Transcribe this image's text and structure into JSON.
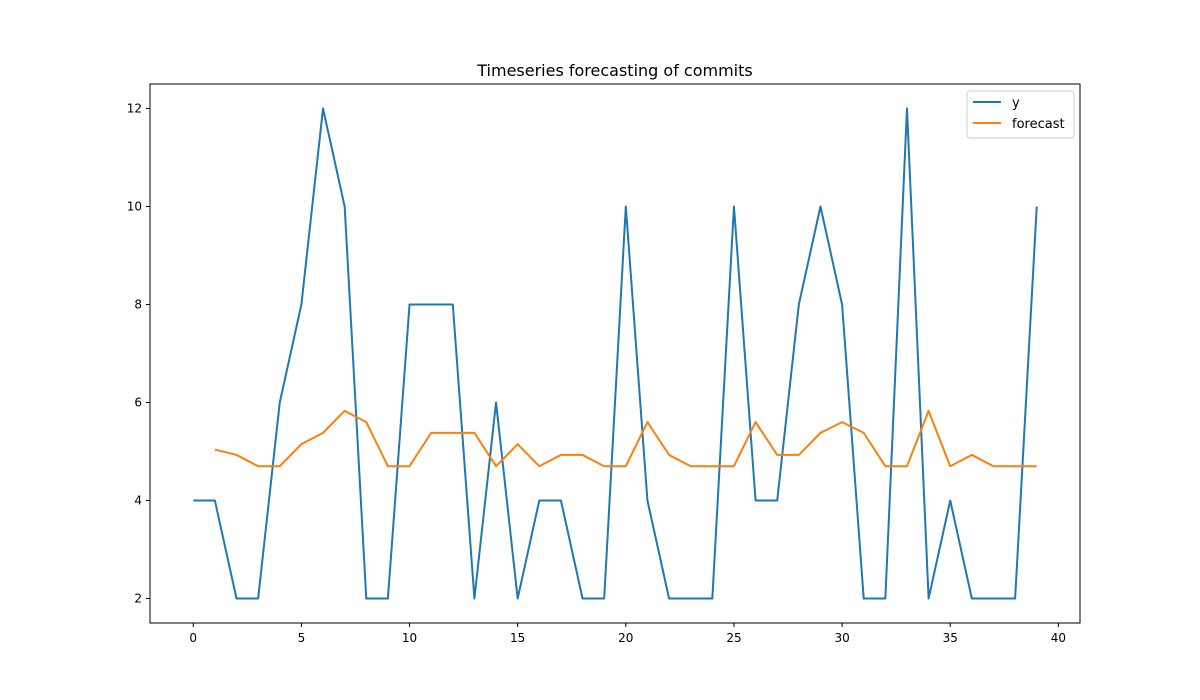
{
  "chart_data": {
    "type": "line",
    "title": "Timeseries forecasting of commits",
    "xlabel": "",
    "ylabel": "",
    "xlim": [
      -2,
      41
    ],
    "ylim": [
      1.5,
      12.5
    ],
    "xticks": [
      0,
      5,
      10,
      15,
      20,
      25,
      30,
      35,
      40
    ],
    "yticks": [
      2,
      4,
      6,
      8,
      10,
      12
    ],
    "grid": false,
    "legend": "top-right",
    "series": [
      {
        "name": "y",
        "color": "#1f77b4",
        "x": [
          0,
          1,
          2,
          3,
          4,
          5,
          6,
          7,
          8,
          9,
          10,
          11,
          12,
          13,
          14,
          15,
          16,
          17,
          18,
          19,
          20,
          21,
          22,
          23,
          24,
          25,
          26,
          27,
          28,
          29,
          30,
          31,
          32,
          33,
          34,
          35,
          36,
          37,
          38,
          39
        ],
        "values": [
          4,
          4,
          2,
          2,
          6,
          8,
          12,
          10,
          2,
          2,
          8,
          8,
          8,
          2,
          6,
          2,
          4,
          4,
          2,
          2,
          10,
          4,
          2,
          2,
          2,
          10,
          4,
          4,
          8,
          10,
          8,
          2,
          2,
          12,
          2,
          4,
          2,
          2,
          2,
          10
        ]
      },
      {
        "name": "forecast",
        "color": "#ff7f0e",
        "x": [
          1,
          2,
          3,
          4,
          5,
          6,
          7,
          8,
          9,
          10,
          11,
          12,
          13,
          14,
          15,
          16,
          17,
          18,
          19,
          20,
          21,
          22,
          23,
          24,
          25,
          26,
          27,
          28,
          29,
          30,
          31,
          32,
          33,
          34,
          35,
          36,
          37,
          38,
          39
        ],
        "values": [
          5.04,
          4.93,
          4.7,
          4.7,
          5.15,
          5.38,
          5.83,
          5.6,
          4.7,
          4.7,
          5.38,
          5.38,
          5.38,
          4.7,
          5.15,
          4.7,
          4.93,
          4.93,
          4.7,
          4.7,
          5.6,
          4.93,
          4.7,
          4.7,
          4.7,
          5.6,
          4.93,
          4.93,
          5.38,
          5.6,
          5.38,
          4.7,
          4.7,
          5.83,
          4.7,
          4.93,
          4.7,
          4.7,
          4.7
        ]
      }
    ]
  }
}
